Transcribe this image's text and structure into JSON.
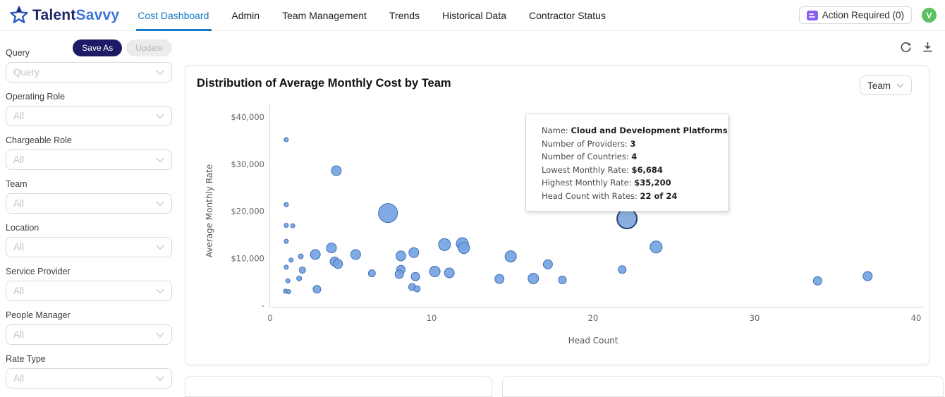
{
  "colors": {
    "accent": "#1779c4",
    "save_btn_bg": "#1c1c66",
    "avatar_bg": "#5cbf60",
    "badge_icon": "#8b5cf6",
    "bubble_fill": "#74a3e1",
    "bubble_stroke": "#3f6fb5",
    "highlight_fill": "#84aadd",
    "highlight_stroke": "#24456e",
    "axis_text": "#666666",
    "axis_line": "#d7d7d7"
  },
  "header": {
    "logo": {
      "text_primary": "Talent",
      "text_secondary": "Savvy"
    },
    "nav": [
      {
        "label": "Cost Dashboard",
        "active": true
      },
      {
        "label": "Admin",
        "active": false
      },
      {
        "label": "Team Management",
        "active": false
      },
      {
        "label": "Trends",
        "active": false
      },
      {
        "label": "Historical Data",
        "active": false
      },
      {
        "label": "Contractor Status",
        "active": false
      }
    ],
    "action_required_label": "Action Required (0)",
    "avatar_initial": "V"
  },
  "sidebar": {
    "query_label": "Query",
    "save_as_label": "Save As",
    "update_label": "Update",
    "query_placeholder": "Query",
    "filters": [
      {
        "label": "Operating Role",
        "value": "All"
      },
      {
        "label": "Chargeable Role",
        "value": "All"
      },
      {
        "label": "Team",
        "value": "All"
      },
      {
        "label": "Location",
        "value": "All"
      },
      {
        "label": "Service Provider",
        "value": "All"
      },
      {
        "label": "People Manager",
        "value": "All"
      },
      {
        "label": "Rate Type",
        "value": "All"
      }
    ]
  },
  "chart_card": {
    "title": "Distribution of Average Monthly Cost by Team",
    "group_by_value": "Team",
    "tooltip": {
      "rows": [
        {
          "label": "Name: ",
          "value": "Cloud and Development Platforms"
        },
        {
          "label": "Number of Providers: ",
          "value": "3"
        },
        {
          "label": "Number of Countries: ",
          "value": "4"
        },
        {
          "label": "Lowest Monthly Rate: ",
          "value": "$6,684"
        },
        {
          "label": "Highest Monthly Rate: ",
          "value": "$35,200"
        },
        {
          "label": "Head Count with Rates: ",
          "value": "22 of 24"
        }
      ]
    }
  },
  "chart_data": {
    "type": "scatter",
    "title": "Distribution of Average Monthly Cost by Team",
    "xlabel": "Head Count",
    "ylabel": "Average Monthly Rate",
    "xlim": [
      0,
      40
    ],
    "ylim": [
      0,
      40000
    ],
    "x_ticks": [
      0,
      10,
      20,
      30,
      40
    ],
    "y_ticks": [
      {
        "value": 0,
        "label": "-"
      },
      {
        "value": 10000,
        "label": "$10,000"
      },
      {
        "value": 20000,
        "label": "$20,000"
      },
      {
        "value": 30000,
        "label": "$30,000"
      },
      {
        "value": 40000,
        "label": "$40,000"
      }
    ],
    "grid": false,
    "legend": "none",
    "points": [
      {
        "x": 1.0,
        "y": 35200,
        "r": 3
      },
      {
        "x": 4.1,
        "y": 28600,
        "r": 7
      },
      {
        "x": 1.0,
        "y": 21400,
        "r": 3
      },
      {
        "x": 1.0,
        "y": 17000,
        "r": 3
      },
      {
        "x": 1.4,
        "y": 16900,
        "r": 3
      },
      {
        "x": 1.0,
        "y": 13600,
        "r": 3
      },
      {
        "x": 7.3,
        "y": 19600,
        "r": 13.5
      },
      {
        "x": 3.8,
        "y": 12200,
        "r": 7
      },
      {
        "x": 2.8,
        "y": 10800,
        "r": 7
      },
      {
        "x": 1.9,
        "y": 10400,
        "r": 3.5
      },
      {
        "x": 5.3,
        "y": 10800,
        "r": 7
      },
      {
        "x": 4.0,
        "y": 9300,
        "r": 6.5
      },
      {
        "x": 4.2,
        "y": 8800,
        "r": 6.5
      },
      {
        "x": 1.3,
        "y": 9600,
        "r": 3
      },
      {
        "x": 1.0,
        "y": 8100,
        "r": 3
      },
      {
        "x": 2.0,
        "y": 7500,
        "r": 4.5
      },
      {
        "x": 1.1,
        "y": 5200,
        "r": 3
      },
      {
        "x": 1.8,
        "y": 5700,
        "r": 3.5
      },
      {
        "x": 0.95,
        "y": 3000,
        "r": 3
      },
      {
        "x": 1.15,
        "y": 2900,
        "r": 3
      },
      {
        "x": 2.9,
        "y": 3400,
        "r": 5.5
      },
      {
        "x": 6.3,
        "y": 6800,
        "r": 5
      },
      {
        "x": 8.1,
        "y": 10500,
        "r": 7
      },
      {
        "x": 8.9,
        "y": 11200,
        "r": 7
      },
      {
        "x": 8.1,
        "y": 7600,
        "r": 6
      },
      {
        "x": 8.0,
        "y": 6600,
        "r": 6
      },
      {
        "x": 9.0,
        "y": 6100,
        "r": 6
      },
      {
        "x": 8.8,
        "y": 3900,
        "r": 5
      },
      {
        "x": 9.1,
        "y": 3500,
        "r": 4.5
      },
      {
        "x": 10.8,
        "y": 12900,
        "r": 8.5
      },
      {
        "x": 11.9,
        "y": 13100,
        "r": 8.5
      },
      {
        "x": 12.0,
        "y": 12200,
        "r": 8
      },
      {
        "x": 10.2,
        "y": 7200,
        "r": 7.5
      },
      {
        "x": 11.1,
        "y": 6900,
        "r": 7
      },
      {
        "x": 14.9,
        "y": 10400,
        "r": 8
      },
      {
        "x": 14.2,
        "y": 5600,
        "r": 6.5
      },
      {
        "x": 16.3,
        "y": 5700,
        "r": 7.5
      },
      {
        "x": 17.2,
        "y": 8700,
        "r": 6.5
      },
      {
        "x": 18.1,
        "y": 5400,
        "r": 5.5
      },
      {
        "x": 23.9,
        "y": 12400,
        "r": 8.5
      },
      {
        "x": 21.8,
        "y": 7600,
        "r": 5.5
      },
      {
        "x": 33.9,
        "y": 5200,
        "r": 6
      },
      {
        "x": 37.0,
        "y": 6200,
        "r": 6.5
      }
    ],
    "highlight_point": {
      "x": 22.1,
      "y": 18400,
      "r": 14,
      "name": "Cloud and Development Platforms"
    }
  }
}
